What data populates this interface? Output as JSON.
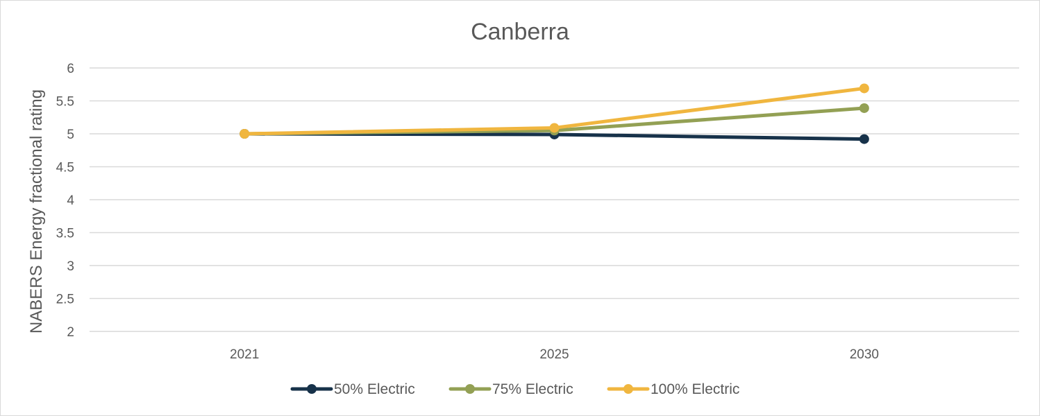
{
  "chart_data": {
    "type": "line",
    "title": "Canberra",
    "xlabel": "",
    "ylabel": "NABERS Energy fractional rating",
    "categories": [
      "2021",
      "2025",
      "2030"
    ],
    "ylim": [
      2,
      6
    ],
    "yticks": [
      "2",
      "2.5",
      "3",
      "3.5",
      "4",
      "4.5",
      "5",
      "5.5",
      "6"
    ],
    "grid": true,
    "legend_position": "bottom",
    "series": [
      {
        "name": "50% Electric",
        "color": "#17324a",
        "values": [
          5.0,
          4.99,
          4.92
        ]
      },
      {
        "name": "75% Electric",
        "color": "#93a054",
        "values": [
          5.0,
          5.05,
          5.39
        ]
      },
      {
        "name": "100% Electric",
        "color": "#f0b63f",
        "values": [
          5.0,
          5.09,
          5.69
        ]
      }
    ]
  }
}
